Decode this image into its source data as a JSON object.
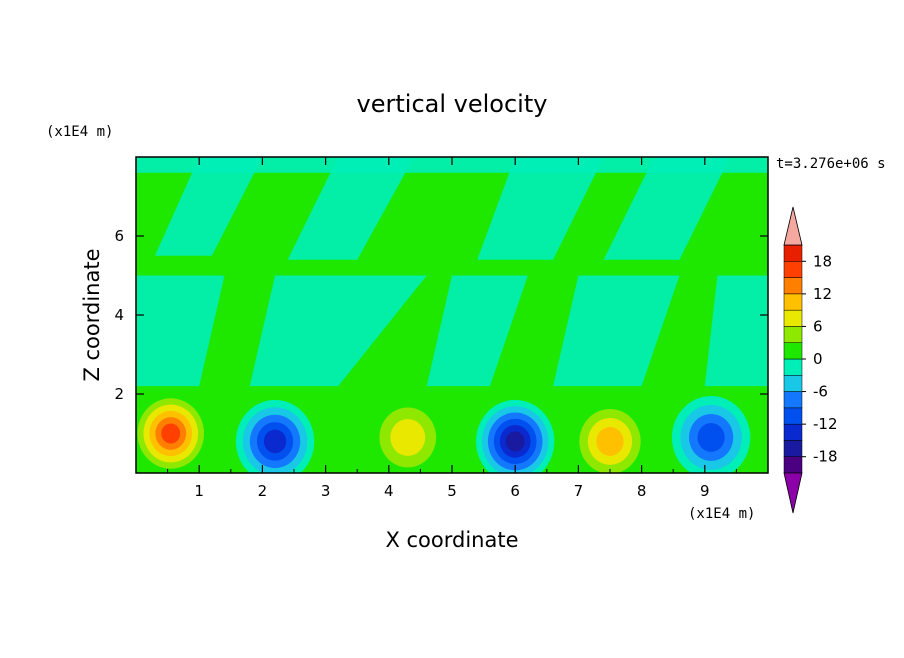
{
  "chart_data": {
    "type": "heatmap",
    "title": "vertical velocity",
    "xlabel": "X coordinate",
    "ylabel": "Z coordinate",
    "x_unit": "(x1E4 m)",
    "y_unit": "(x1E4 m)",
    "time_label": "t=3.276e+06 s",
    "xlim": [
      0,
      10
    ],
    "ylim": [
      0,
      8
    ],
    "x_ticks": [
      "1",
      "2",
      "3",
      "4",
      "5",
      "6",
      "7",
      "8",
      "9"
    ],
    "y_ticks": [
      "2",
      "4",
      "6"
    ],
    "colorbar": {
      "levels": [
        -21,
        -18,
        -15,
        -12,
        -9,
        -6,
        -3,
        0,
        3,
        6,
        9,
        12,
        15,
        18,
        21
      ],
      "colors": [
        "#4b0082",
        "#1a1aa0",
        "#0a2ad0",
        "#0050f0",
        "#1478ff",
        "#18c8e6",
        "#00eeb8",
        "#1fe800",
        "#8fe800",
        "#e8e800",
        "#ffc000",
        "#ff8000",
        "#ff4000",
        "#e82000"
      ],
      "under_color": "#8b00a8",
      "over_color": "#f4a8a0",
      "tick_labels": [
        "18",
        "12",
        "6",
        "0",
        "-6",
        "-12",
        "-18"
      ],
      "tick_values": [
        18,
        12,
        6,
        0,
        -6,
        -12,
        -18
      ]
    },
    "features": [
      {
        "x": 0.55,
        "z": 1.0,
        "value": 18
      },
      {
        "x": 2.2,
        "z": 0.8,
        "value": -14
      },
      {
        "x": 4.3,
        "z": 0.9,
        "value": 9
      },
      {
        "x": 6.0,
        "z": 0.8,
        "value": -17
      },
      {
        "x": 7.5,
        "z": 0.8,
        "value": 12
      },
      {
        "x": 9.1,
        "z": 0.9,
        "value": -13
      }
    ]
  }
}
